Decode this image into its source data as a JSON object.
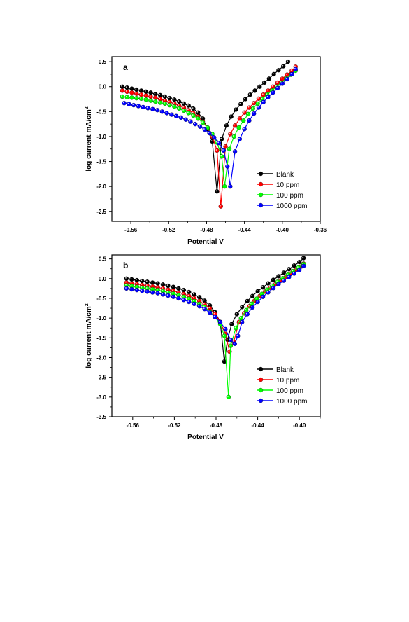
{
  "chart_data": [
    {
      "type": "line",
      "panel_label": "a",
      "xlabel": "Potential V",
      "ylabel": "log current mA/cm",
      "ylabel_sup": "2",
      "xlim": [
        -0.58,
        -0.36
      ],
      "ylim": [
        -2.7,
        0.6
      ],
      "xticks": [
        -0.56,
        -0.52,
        -0.48,
        -0.44,
        -0.4,
        -0.36
      ],
      "xtick_labels": [
        "-0.56",
        "-0.52",
        "-0.48",
        "-0.44",
        "-0.40",
        "-0.36"
      ],
      "yticks": [
        0.5,
        0.0,
        -0.5,
        -1.0,
        -1.5,
        -2.0,
        -2.5
      ],
      "ytick_labels": [
        "0.5",
        "0.0",
        "-0.5",
        "-1.0",
        "-1.5",
        "-2.0",
        "-2.5"
      ],
      "grid": false,
      "legend_position": "bottom-right",
      "series": [
        {
          "name": "Blank",
          "color": "#000000",
          "x": [
            -0.569,
            -0.564,
            -0.559,
            -0.554,
            -0.549,
            -0.544,
            -0.539,
            -0.534,
            -0.529,
            -0.524,
            -0.519,
            -0.514,
            -0.509,
            -0.504,
            -0.499,
            -0.494,
            -0.489,
            -0.484,
            -0.479,
            -0.474,
            -0.469,
            -0.464,
            -0.459,
            -0.454,
            -0.449,
            -0.444,
            -0.439,
            -0.434,
            -0.429,
            -0.424,
            -0.419,
            -0.414,
            -0.409,
            -0.404,
            -0.399,
            -0.394
          ],
          "y": [
            0.0,
            -0.02,
            -0.04,
            -0.06,
            -0.08,
            -0.1,
            -0.12,
            -0.15,
            -0.17,
            -0.2,
            -0.23,
            -0.26,
            -0.3,
            -0.34,
            -0.38,
            -0.44,
            -0.52,
            -0.64,
            -0.85,
            -1.1,
            -2.1,
            -1.05,
            -0.78,
            -0.6,
            -0.46,
            -0.35,
            -0.25,
            -0.16,
            -0.08,
            0.0,
            0.08,
            0.16,
            0.25,
            0.33,
            0.41,
            0.5
          ]
        },
        {
          "name": "10 ppm",
          "color": "#ff0000",
          "x": [
            -0.569,
            -0.564,
            -0.559,
            -0.554,
            -0.549,
            -0.544,
            -0.539,
            -0.534,
            -0.529,
            -0.524,
            -0.519,
            -0.514,
            -0.509,
            -0.504,
            -0.499,
            -0.494,
            -0.489,
            -0.484,
            -0.479,
            -0.474,
            -0.469,
            -0.465,
            -0.46,
            -0.455,
            -0.45,
            -0.445,
            -0.44,
            -0.435,
            -0.43,
            -0.425,
            -0.42,
            -0.415,
            -0.41,
            -0.405,
            -0.4,
            -0.395,
            -0.39,
            -0.386
          ],
          "y": [
            -0.08,
            -0.1,
            -0.12,
            -0.14,
            -0.16,
            -0.18,
            -0.2,
            -0.22,
            -0.25,
            -0.28,
            -0.31,
            -0.34,
            -0.38,
            -0.42,
            -0.47,
            -0.53,
            -0.6,
            -0.7,
            -0.82,
            -1.0,
            -1.28,
            -2.4,
            -1.2,
            -0.95,
            -0.78,
            -0.64,
            -0.52,
            -0.42,
            -0.33,
            -0.24,
            -0.16,
            -0.08,
            0.0,
            0.08,
            0.16,
            0.24,
            0.32,
            0.4
          ]
        },
        {
          "name": "100 ppm",
          "color": "#00ff00",
          "x": [
            -0.569,
            -0.564,
            -0.559,
            -0.554,
            -0.549,
            -0.544,
            -0.539,
            -0.534,
            -0.529,
            -0.524,
            -0.519,
            -0.514,
            -0.509,
            -0.504,
            -0.499,
            -0.494,
            -0.489,
            -0.484,
            -0.479,
            -0.474,
            -0.469,
            -0.464,
            -0.461,
            -0.456,
            -0.451,
            -0.446,
            -0.441,
            -0.436,
            -0.431,
            -0.426,
            -0.421,
            -0.416,
            -0.411,
            -0.406,
            -0.401,
            -0.396,
            -0.391,
            -0.386
          ],
          "y": [
            -0.2,
            -0.21,
            -0.22,
            -0.23,
            -0.24,
            -0.26,
            -0.28,
            -0.3,
            -0.32,
            -0.34,
            -0.37,
            -0.4,
            -0.44,
            -0.48,
            -0.53,
            -0.58,
            -0.64,
            -0.72,
            -0.82,
            -0.95,
            -1.12,
            -1.4,
            -2.0,
            -1.25,
            -1.0,
            -0.82,
            -0.68,
            -0.55,
            -0.44,
            -0.34,
            -0.25,
            -0.16,
            -0.08,
            0.0,
            0.08,
            0.16,
            0.24,
            0.32
          ]
        },
        {
          "name": "1000 ppm",
          "color": "#0000ff",
          "x": [
            -0.567,
            -0.562,
            -0.557,
            -0.552,
            -0.547,
            -0.542,
            -0.537,
            -0.532,
            -0.527,
            -0.522,
            -0.517,
            -0.512,
            -0.507,
            -0.502,
            -0.497,
            -0.492,
            -0.487,
            -0.482,
            -0.477,
            -0.472,
            -0.467,
            -0.462,
            -0.458,
            -0.455,
            -0.45,
            -0.445,
            -0.44,
            -0.435,
            -0.43,
            -0.425,
            -0.42,
            -0.415,
            -0.41,
            -0.405,
            -0.4,
            -0.395,
            -0.39,
            -0.386
          ],
          "y": [
            -0.33,
            -0.35,
            -0.37,
            -0.39,
            -0.41,
            -0.43,
            -0.45,
            -0.47,
            -0.5,
            -0.53,
            -0.56,
            -0.59,
            -0.62,
            -0.66,
            -0.7,
            -0.75,
            -0.8,
            -0.86,
            -0.93,
            -1.02,
            -1.13,
            -1.28,
            -1.6,
            -2.0,
            -1.3,
            -1.05,
            -0.85,
            -0.68,
            -0.54,
            -0.42,
            -0.31,
            -0.21,
            -0.12,
            -0.03,
            0.06,
            0.15,
            0.25,
            0.35
          ]
        }
      ]
    },
    {
      "type": "line",
      "panel_label": "b",
      "xlabel": "Potential V",
      "ylabel": "log current mA/cm",
      "ylabel_sup": "2",
      "xlim": [
        -0.58,
        -0.38
      ],
      "ylim": [
        -3.5,
        0.6
      ],
      "xticks": [
        -0.56,
        -0.52,
        -0.48,
        -0.44,
        -0.4
      ],
      "xtick_labels": [
        "-0.56",
        "-0.52",
        "-0.48",
        "-0.44",
        "-0.40"
      ],
      "yticks": [
        0.5,
        0.0,
        -0.5,
        -1.0,
        -1.5,
        -2.0,
        -2.5,
        -3.0,
        -3.5
      ],
      "ytick_labels": [
        "0.5",
        "0.0",
        "-0.5",
        "-1.0",
        "-1.5",
        "-2.0",
        "-2.5",
        "-3.0",
        "-3.5"
      ],
      "grid": false,
      "legend_position": "bottom-right",
      "series": [
        {
          "name": "Blank",
          "color": "#000000",
          "x": [
            -0.566,
            -0.561,
            -0.556,
            -0.551,
            -0.546,
            -0.541,
            -0.536,
            -0.531,
            -0.526,
            -0.521,
            -0.516,
            -0.511,
            -0.506,
            -0.501,
            -0.496,
            -0.491,
            -0.486,
            -0.481,
            -0.476,
            -0.472,
            -0.469,
            -0.465,
            -0.46,
            -0.455,
            -0.45,
            -0.445,
            -0.44,
            -0.435,
            -0.43,
            -0.425,
            -0.42,
            -0.415,
            -0.41,
            -0.405,
            -0.4,
            -0.396
          ],
          "y": [
            0.0,
            -0.02,
            -0.04,
            -0.06,
            -0.08,
            -0.1,
            -0.12,
            -0.15,
            -0.18,
            -0.21,
            -0.25,
            -0.29,
            -0.34,
            -0.4,
            -0.47,
            -0.56,
            -0.68,
            -0.85,
            -1.1,
            -2.1,
            -1.55,
            -1.15,
            -0.9,
            -0.72,
            -0.57,
            -0.44,
            -0.32,
            -0.22,
            -0.12,
            -0.03,
            0.06,
            0.15,
            0.24,
            0.33,
            0.42,
            0.52
          ]
        },
        {
          "name": "10 ppm",
          "color": "#ff0000",
          "x": [
            -0.566,
            -0.561,
            -0.556,
            -0.551,
            -0.546,
            -0.541,
            -0.536,
            -0.531,
            -0.526,
            -0.521,
            -0.516,
            -0.511,
            -0.506,
            -0.501,
            -0.496,
            -0.491,
            -0.486,
            -0.481,
            -0.476,
            -0.471,
            -0.467,
            -0.463,
            -0.458,
            -0.453,
            -0.448,
            -0.443,
            -0.438,
            -0.433,
            -0.428,
            -0.423,
            -0.418,
            -0.413,
            -0.408,
            -0.403,
            -0.398,
            -0.396
          ],
          "y": [
            -0.1,
            -0.12,
            -0.14,
            -0.16,
            -0.18,
            -0.2,
            -0.22,
            -0.25,
            -0.28,
            -0.31,
            -0.35,
            -0.39,
            -0.44,
            -0.5,
            -0.57,
            -0.65,
            -0.75,
            -0.9,
            -1.1,
            -1.4,
            -1.85,
            -1.6,
            -1.1,
            -0.88,
            -0.7,
            -0.56,
            -0.44,
            -0.33,
            -0.23,
            -0.14,
            -0.05,
            0.04,
            0.13,
            0.22,
            0.31,
            0.38
          ]
        },
        {
          "name": "100 ppm",
          "color": "#00ff00",
          "x": [
            -0.566,
            -0.561,
            -0.556,
            -0.551,
            -0.546,
            -0.541,
            -0.536,
            -0.531,
            -0.526,
            -0.521,
            -0.516,
            -0.511,
            -0.506,
            -0.501,
            -0.496,
            -0.491,
            -0.486,
            -0.481,
            -0.476,
            -0.472,
            -0.468,
            -0.466,
            -0.461,
            -0.456,
            -0.451,
            -0.446,
            -0.441,
            -0.436,
            -0.431,
            -0.426,
            -0.421,
            -0.416,
            -0.411,
            -0.406,
            -0.401,
            -0.396
          ],
          "y": [
            -0.17,
            -0.19,
            -0.21,
            -0.23,
            -0.25,
            -0.27,
            -0.29,
            -0.32,
            -0.35,
            -0.38,
            -0.42,
            -0.46,
            -0.51,
            -0.57,
            -0.64,
            -0.72,
            -0.83,
            -0.97,
            -1.15,
            -1.45,
            -3.0,
            -1.7,
            -1.25,
            -1.0,
            -0.8,
            -0.64,
            -0.51,
            -0.39,
            -0.28,
            -0.18,
            -0.08,
            0.01,
            0.1,
            0.19,
            0.28,
            0.37
          ]
        },
        {
          "name": "1000 ppm",
          "color": "#0000ff",
          "x": [
            -0.566,
            -0.561,
            -0.556,
            -0.551,
            -0.546,
            -0.541,
            -0.536,
            -0.531,
            -0.526,
            -0.521,
            -0.516,
            -0.511,
            -0.506,
            -0.501,
            -0.496,
            -0.491,
            -0.486,
            -0.481,
            -0.476,
            -0.471,
            -0.466,
            -0.462,
            -0.459,
            -0.455,
            -0.45,
            -0.445,
            -0.44,
            -0.435,
            -0.43,
            -0.425,
            -0.42,
            -0.415,
            -0.41,
            -0.405,
            -0.4,
            -0.396
          ],
          "y": [
            -0.25,
            -0.27,
            -0.29,
            -0.31,
            -0.33,
            -0.35,
            -0.37,
            -0.4,
            -0.43,
            -0.46,
            -0.5,
            -0.54,
            -0.59,
            -0.64,
            -0.7,
            -0.77,
            -0.86,
            -0.97,
            -1.1,
            -1.28,
            -1.55,
            -1.65,
            -1.45,
            -1.1,
            -0.9,
            -0.73,
            -0.59,
            -0.46,
            -0.35,
            -0.24,
            -0.14,
            -0.05,
            0.04,
            0.13,
            0.22,
            0.32
          ]
        }
      ]
    }
  ]
}
